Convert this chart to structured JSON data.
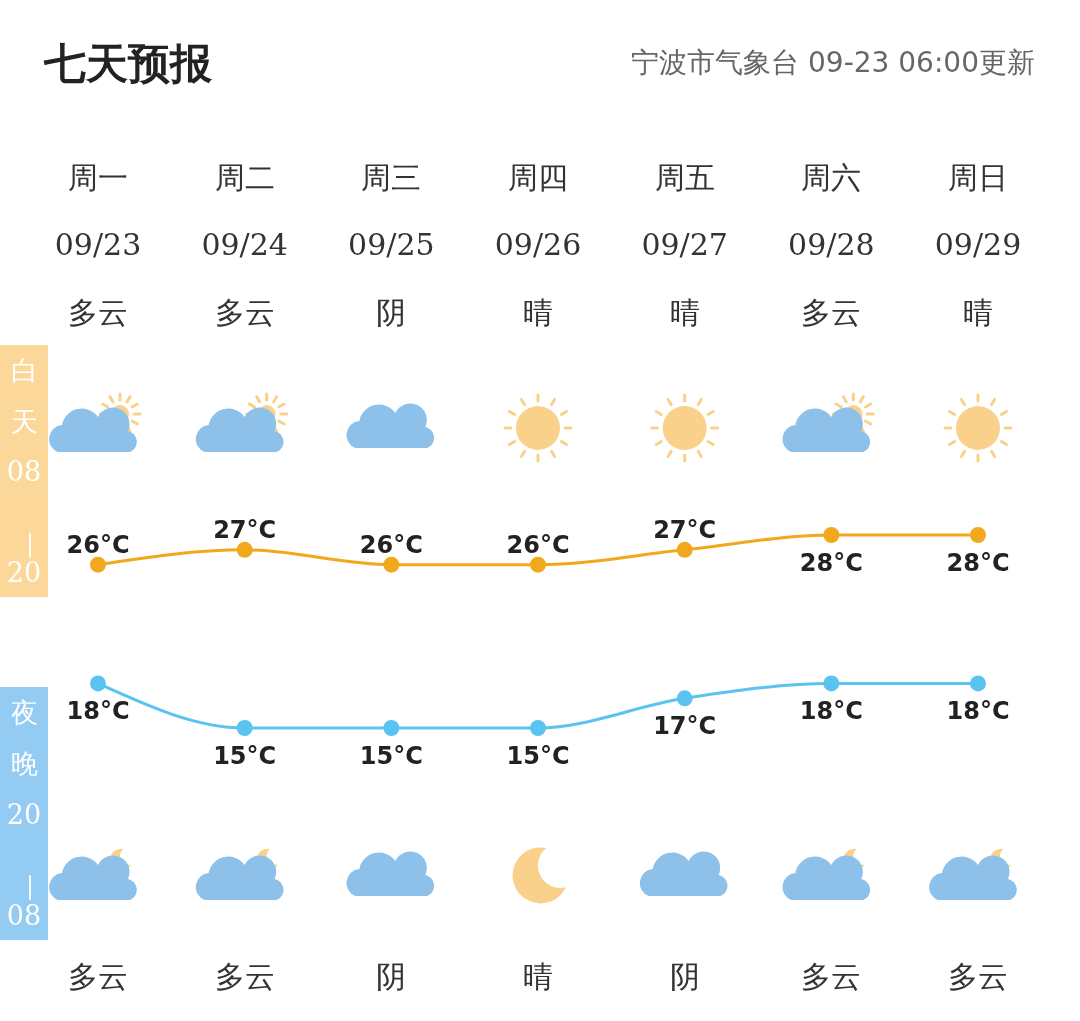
{
  "chart_data": {
    "type": "line",
    "title": "七天预报",
    "subtitle": "宁波市气象台 09-23 06:00更新",
    "categories": [
      "周一\n09/23\n多云",
      "周二\n09/24\n多云",
      "周三\n09/25\n阴",
      "周四\n09/26\n晴",
      "周五\n09/27\n晴",
      "周六\n09/28\n多云",
      "周日\n09/29\n晴"
    ],
    "series": [
      {
        "name": "白天08—20",
        "color": "#f2a81d",
        "values": [
          26,
          27,
          26,
          26,
          27,
          28,
          28
        ],
        "value_labels": [
          "26°C",
          "27°C",
          "26°C",
          "26°C",
          "27°C",
          "28°C",
          "28°C"
        ]
      },
      {
        "name": "夜晚20—08",
        "color": "#5bc3ef",
        "values": [
          18,
          15,
          15,
          15,
          17,
          18,
          18
        ],
        "value_labels": [
          "18°C",
          "15°C",
          "15°C",
          "15°C",
          "17°C",
          "18°C",
          "18°C"
        ]
      }
    ],
    "marker": "circle",
    "annotations": [
      "多云",
      "多云",
      "阴",
      "晴",
      "阴",
      "多云",
      "多云"
    ]
  }
}
